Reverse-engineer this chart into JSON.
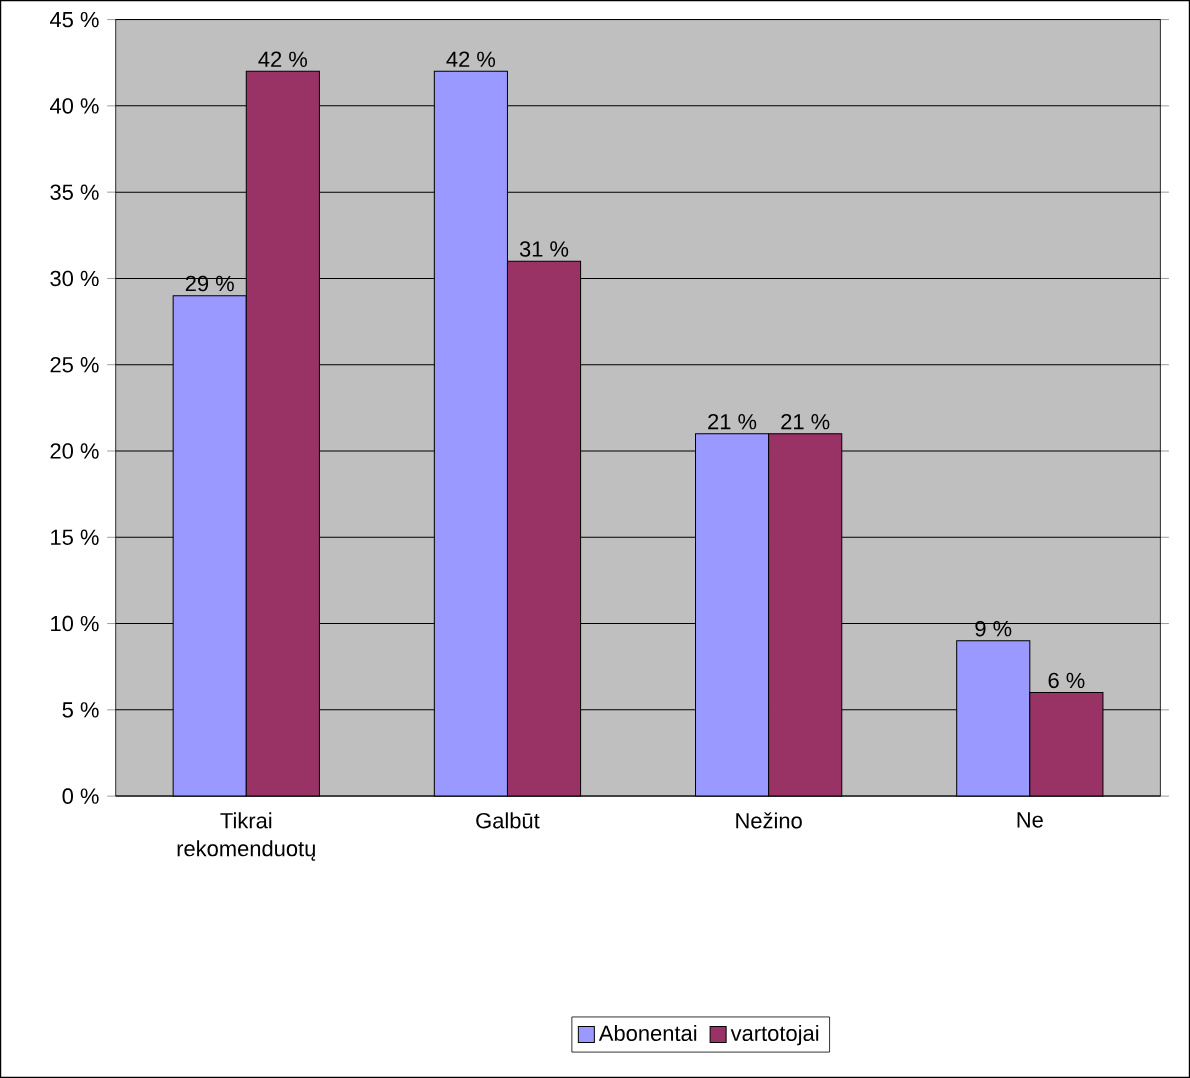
{
  "chart_data": {
    "type": "bar",
    "categories": [
      "Tikrai rekomenduotų",
      "Galbūt",
      "Nežino",
      "Ne"
    ],
    "series": [
      {
        "name": "Abonentai",
        "color": "#9999ff",
        "values": [
          29,
          42,
          21,
          9
        ],
        "value_labels": [
          "29 %",
          "42 %",
          "21 %",
          "9 %"
        ]
      },
      {
        "name": "vartotojai",
        "color": "#993366",
        "values": [
          42,
          31,
          21,
          6
        ],
        "value_labels": [
          "42 %",
          "31 %",
          "21 %",
          "6 %"
        ]
      }
    ],
    "ylim": [
      0,
      45
    ],
    "yticks": [
      {
        "value": 0,
        "label": "0 %"
      },
      {
        "value": 5,
        "label": "5 %"
      },
      {
        "value": 10,
        "label": "10 %"
      },
      {
        "value": 15,
        "label": "15 %"
      },
      {
        "value": 20,
        "label": "20 %"
      },
      {
        "value": 25,
        "label": "25 %"
      },
      {
        "value": 30,
        "label": "30 %"
      },
      {
        "value": 35,
        "label": "35 %"
      },
      {
        "value": 40,
        "label": "40 %"
      },
      {
        "value": 45,
        "label": "45 %"
      }
    ],
    "grid": "y",
    "legend": "bottom"
  }
}
